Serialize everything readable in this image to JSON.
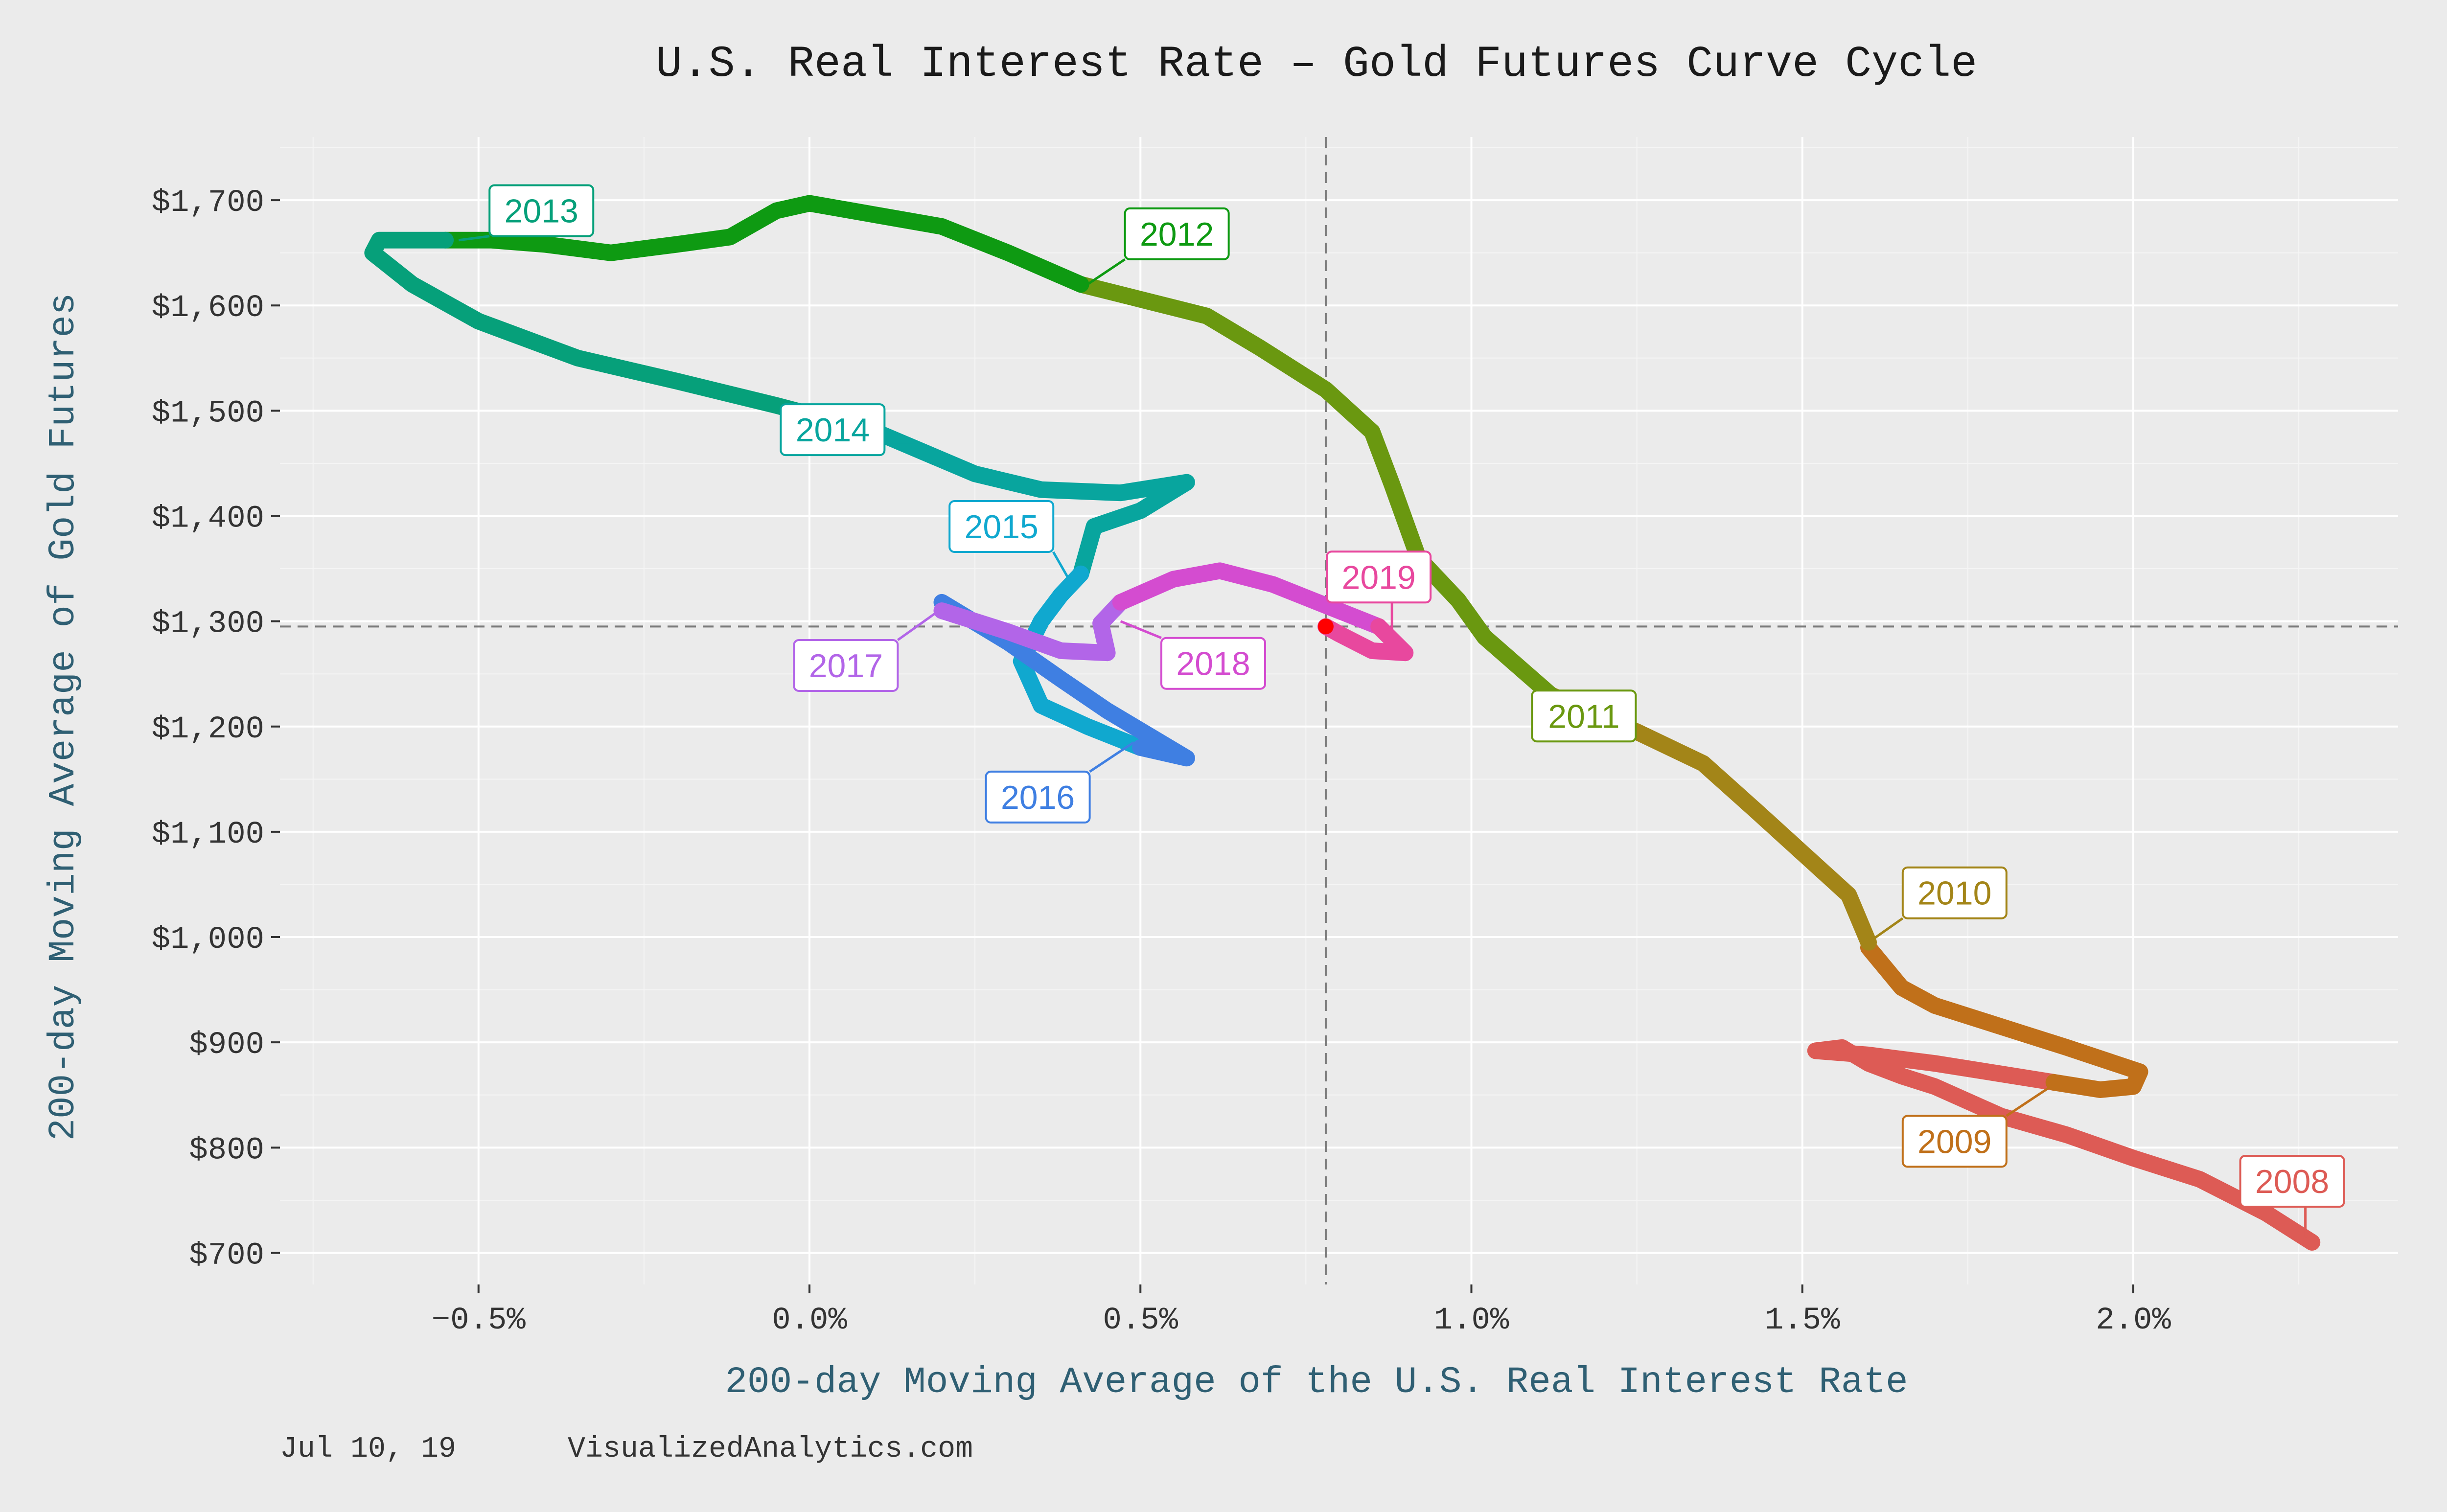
{
  "chart_data": {
    "type": "line",
    "title": "U.S. Real Interest Rate – Gold Futures Curve Cycle",
    "xlabel": "200-day Moving Average of the U.S. Real Interest Rate",
    "ylabel": "200-day Moving Average of Gold Futures",
    "xlim": [
      -0.8,
      2.4
    ],
    "ylim": [
      670,
      1760
    ],
    "x_ticks": [
      {
        "value": -0.5,
        "label": "−0.5%"
      },
      {
        "value": 0.0,
        "label": "0.0%"
      },
      {
        "value": 0.5,
        "label": "0.5%"
      },
      {
        "value": 1.0,
        "label": "1.0%"
      },
      {
        "value": 1.5,
        "label": "1.5%"
      },
      {
        "value": 2.0,
        "label": "2.0%"
      }
    ],
    "y_ticks": [
      {
        "value": 700,
        "label": "$700"
      },
      {
        "value": 800,
        "label": "$800"
      },
      {
        "value": 900,
        "label": "$900"
      },
      {
        "value": 1000,
        "label": "$1,000"
      },
      {
        "value": 1100,
        "label": "$1,100"
      },
      {
        "value": 1200,
        "label": "$1,200"
      },
      {
        "value": 1300,
        "label": "$1,300"
      },
      {
        "value": 1400,
        "label": "$1,400"
      },
      {
        "value": 1500,
        "label": "$1,500"
      },
      {
        "value": 1600,
        "label": "$1,600"
      },
      {
        "value": 1700,
        "label": "$1,700"
      }
    ],
    "grid": true,
    "legend": "none",
    "reference_lines": {
      "x": 0.78,
      "y": 1295
    },
    "current_point": {
      "x": 0.78,
      "y": 1295,
      "color": "#ff0000"
    },
    "series": [
      {
        "name": "2008",
        "color": "#dd5b55",
        "points": [
          [
            2.27,
            710
          ],
          [
            2.2,
            738
          ],
          [
            2.1,
            770
          ],
          [
            2.0,
            790
          ],
          [
            1.9,
            812
          ],
          [
            1.8,
            830
          ],
          [
            1.7,
            858
          ],
          [
            1.65,
            868
          ],
          [
            1.6,
            880
          ],
          [
            1.56,
            895
          ],
          [
            1.52,
            892
          ],
          [
            1.6,
            888
          ],
          [
            1.7,
            880
          ],
          [
            1.8,
            870
          ],
          [
            1.88,
            862
          ]
        ],
        "label": {
          "text": "2008",
          "x": 2.24,
          "y": 768,
          "anchor_x": 2.26,
          "anchor_y": 715
        }
      },
      {
        "name": "2009",
        "color": "#c0701a",
        "points": [
          [
            1.88,
            862
          ],
          [
            1.95,
            855
          ],
          [
            2.0,
            858
          ],
          [
            2.01,
            872
          ],
          [
            1.9,
            895
          ],
          [
            1.8,
            915
          ],
          [
            1.7,
            935
          ],
          [
            1.65,
            952
          ],
          [
            1.6,
            990
          ]
        ],
        "label": {
          "text": "2009",
          "x": 1.73,
          "y": 806,
          "anchor_x": 1.88,
          "anchor_y": 860
        }
      },
      {
        "name": "2010",
        "color": "#a38518",
        "points": [
          [
            1.6,
            995
          ],
          [
            1.57,
            1040
          ],
          [
            1.5,
            1080
          ],
          [
            1.43,
            1120
          ],
          [
            1.35,
            1165
          ],
          [
            1.25,
            1195
          ],
          [
            1.12,
            1230
          ]
        ],
        "label": {
          "text": "2010",
          "x": 1.73,
          "y": 1042,
          "anchor_x": 1.6,
          "anchor_y": 995
        }
      },
      {
        "name": "2011",
        "color": "#6a9810",
        "points": [
          [
            1.12,
            1230
          ],
          [
            1.02,
            1285
          ],
          [
            0.98,
            1320
          ],
          [
            0.92,
            1360
          ],
          [
            0.88,
            1430
          ],
          [
            0.85,
            1480
          ],
          [
            0.78,
            1520
          ],
          [
            0.68,
            1560
          ],
          [
            0.6,
            1590
          ],
          [
            0.41,
            1620
          ]
        ],
        "label": {
          "text": "2011",
          "x": 1.17,
          "y": 1210,
          "anchor_x": 1.12,
          "anchor_y": 1225
        }
      },
      {
        "name": "2012",
        "color": "#0e9a12",
        "points": [
          [
            0.41,
            1620
          ],
          [
            0.3,
            1650
          ],
          [
            0.2,
            1675
          ],
          [
            0.0,
            1697
          ],
          [
            -0.05,
            1690
          ],
          [
            -0.12,
            1665
          ],
          [
            -0.2,
            1658
          ],
          [
            -0.3,
            1650
          ],
          [
            -0.4,
            1658
          ],
          [
            -0.48,
            1662
          ],
          [
            -0.55,
            1662
          ]
        ],
        "label": {
          "text": "2012",
          "x": 0.555,
          "y": 1668,
          "anchor_x": 0.42,
          "anchor_y": 1620
        }
      },
      {
        "name": "2013",
        "color": "#06a07a",
        "points": [
          [
            -0.55,
            1662
          ],
          [
            -0.65,
            1662
          ],
          [
            -0.66,
            1650
          ],
          [
            -0.6,
            1620
          ],
          [
            -0.5,
            1585
          ],
          [
            -0.35,
            1550
          ],
          [
            -0.2,
            1528
          ],
          [
            -0.05,
            1505
          ],
          [
            0.1,
            1480
          ]
        ],
        "label": {
          "text": "2013",
          "x": -0.405,
          "y": 1690,
          "anchor_x": -0.53,
          "anchor_y": 1662
        }
      },
      {
        "name": "2014",
        "color": "#08a59e",
        "points": [
          [
            0.1,
            1480
          ],
          [
            0.25,
            1440
          ],
          [
            0.35,
            1425
          ],
          [
            0.47,
            1422
          ],
          [
            0.57,
            1432
          ],
          [
            0.5,
            1405
          ],
          [
            0.43,
            1390
          ],
          [
            0.41,
            1345
          ]
        ],
        "label": {
          "text": "2014",
          "x": 0.035,
          "y": 1482,
          "anchor_x": 0.16,
          "anchor_y": 1470
        }
      },
      {
        "name": "2015",
        "color": "#10a8cf",
        "points": [
          [
            0.41,
            1345
          ],
          [
            0.38,
            1325
          ],
          [
            0.35,
            1300
          ],
          [
            0.32,
            1262
          ],
          [
            0.35,
            1220
          ],
          [
            0.42,
            1200
          ],
          [
            0.5,
            1180
          ]
        ],
        "label": {
          "text": "2015",
          "x": 0.29,
          "y": 1390,
          "anchor_x": 0.39,
          "anchor_y": 1342
        }
      },
      {
        "name": "2016",
        "color": "#3f7fe2",
        "points": [
          [
            0.5,
            1180
          ],
          [
            0.57,
            1170
          ],
          [
            0.45,
            1215
          ],
          [
            0.38,
            1245
          ],
          [
            0.3,
            1280
          ],
          [
            0.2,
            1318
          ]
        ],
        "label": {
          "text": "2016",
          "x": 0.345,
          "y": 1133,
          "anchor_x": 0.49,
          "anchor_y": 1185
        }
      },
      {
        "name": "2017",
        "color": "#b265e8",
        "points": [
          [
            0.2,
            1310
          ],
          [
            0.3,
            1290
          ],
          [
            0.38,
            1272
          ],
          [
            0.45,
            1270
          ],
          [
            0.44,
            1298
          ],
          [
            0.47,
            1318
          ]
        ],
        "label": {
          "text": "2017",
          "x": 0.055,
          "y": 1258,
          "anchor_x": 0.2,
          "anchor_y": 1312
        }
      },
      {
        "name": "2018",
        "color": "#d44cd0",
        "points": [
          [
            0.47,
            1318
          ],
          [
            0.55,
            1340
          ],
          [
            0.62,
            1348
          ],
          [
            0.7,
            1335
          ],
          [
            0.78,
            1315
          ],
          [
            0.86,
            1295
          ]
        ],
        "label": {
          "text": "2018",
          "x": 0.61,
          "y": 1260,
          "anchor_x": 0.47,
          "anchor_y": 1300
        }
      },
      {
        "name": "2019",
        "color": "#e8489e",
        "points": [
          [
            0.86,
            1295
          ],
          [
            0.9,
            1270
          ],
          [
            0.85,
            1272
          ],
          [
            0.8,
            1288
          ],
          [
            0.78,
            1295
          ]
        ],
        "label": {
          "text": "2019",
          "x": 0.86,
          "y": 1342,
          "anchor_x": 0.88,
          "anchor_y": 1272
        }
      }
    ]
  },
  "footer": {
    "date": "Jul 10, 19",
    "source": "VisualizedAnalytics.com"
  }
}
